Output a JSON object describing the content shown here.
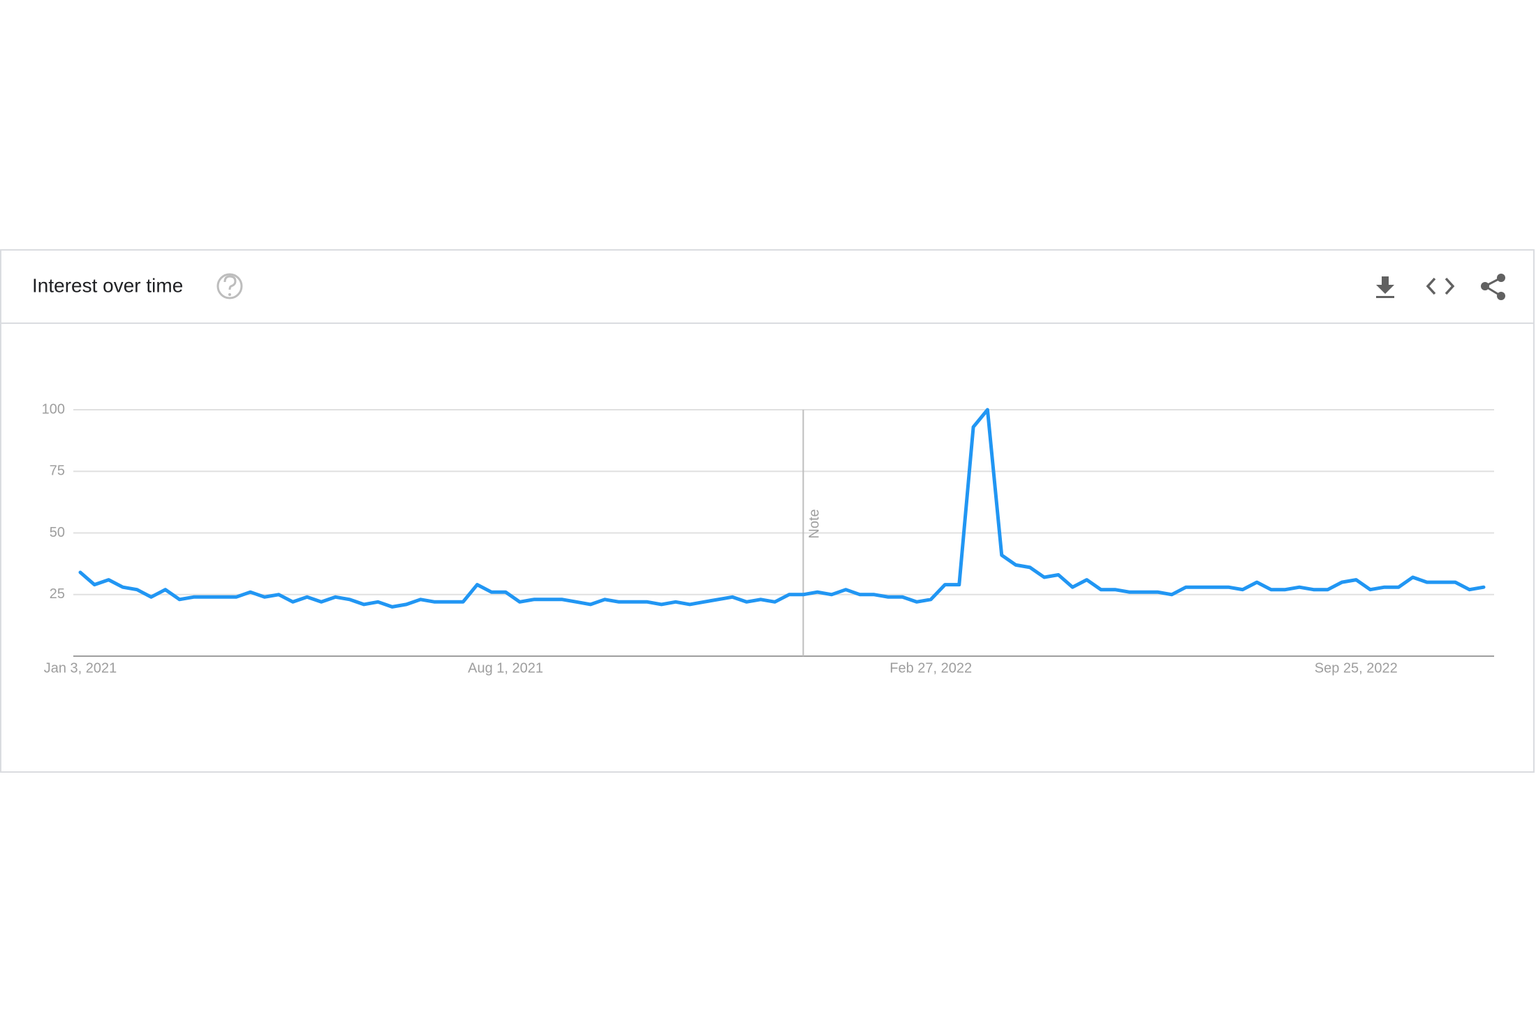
{
  "header": {
    "title": "Interest over time"
  },
  "chart_data": {
    "type": "line",
    "x": [
      "Jan 3, 2021",
      null,
      null,
      null,
      null,
      null,
      null,
      null,
      null,
      null,
      null,
      null,
      null,
      null,
      null,
      null,
      null,
      null,
      null,
      null,
      null,
      null,
      null,
      null,
      null,
      null,
      null,
      null,
      null,
      null,
      "Aug 1, 2021",
      null,
      null,
      null,
      null,
      null,
      null,
      null,
      null,
      null,
      null,
      null,
      null,
      null,
      null,
      null,
      null,
      null,
      null,
      null,
      null,
      null,
      null,
      null,
      null,
      null,
      null,
      null,
      null,
      null,
      "Feb 27, 2022",
      null,
      null,
      null,
      null,
      null,
      null,
      null,
      null,
      null,
      null,
      null,
      null,
      null,
      null,
      null,
      null,
      null,
      null,
      null,
      null,
      null,
      null,
      null,
      null,
      null,
      null,
      null,
      null,
      null,
      "Sep 25, 2022",
      null,
      null,
      null,
      null,
      null,
      null,
      null,
      null,
      null
    ],
    "values": [
      34,
      29,
      31,
      28,
      27,
      24,
      27,
      23,
      24,
      24,
      24,
      24,
      26,
      24,
      25,
      22,
      24,
      22,
      24,
      23,
      21,
      22,
      20,
      21,
      23,
      22,
      22,
      22,
      29,
      26,
      26,
      22,
      23,
      23,
      23,
      22,
      21,
      23,
      22,
      22,
      22,
      21,
      22,
      21,
      22,
      23,
      24,
      22,
      23,
      22,
      25,
      25,
      26,
      25,
      27,
      25,
      25,
      24,
      24,
      22,
      23,
      29,
      29,
      93,
      100,
      41,
      37,
      36,
      32,
      33,
      28,
      31,
      27,
      27,
      26,
      26,
      26,
      25,
      28,
      28,
      28,
      28,
      27,
      30,
      27,
      27,
      28,
      27,
      27,
      30,
      31,
      27,
      28,
      28,
      32,
      30,
      30,
      30,
      27,
      28
    ],
    "color": "#2196f3",
    "ylim": [
      0,
      100
    ],
    "yticks": [
      25,
      50,
      75,
      100
    ],
    "grid": true,
    "annotations": [
      {
        "label": "Note",
        "index": 51
      }
    ]
  }
}
